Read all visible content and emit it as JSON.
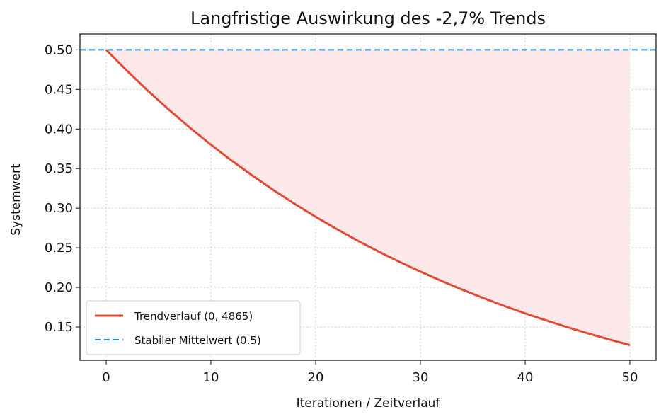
{
  "chart_data": {
    "type": "line",
    "title": "Langfristige Auswirkung des -2,7% Trends",
    "xlabel": "Iterationen / Zeitverlauf",
    "ylabel": "Systemwert",
    "xlim": [
      -2.5,
      52.5
    ],
    "ylim": [
      0.108,
      0.52
    ],
    "x_ticks": [
      0,
      10,
      20,
      30,
      40,
      50
    ],
    "y_ticks": [
      0.15,
      0.2,
      0.25,
      0.3,
      0.35,
      0.4,
      0.45,
      0.5
    ],
    "x_tick_labels": [
      "0",
      "10",
      "20",
      "30",
      "40",
      "50"
    ],
    "y_tick_labels": [
      "0.15",
      "0.20",
      "0.25",
      "0.30",
      "0.35",
      "0.40",
      "0.45",
      "0.50"
    ],
    "grid": true,
    "legend_position": "lower-left",
    "series": [
      {
        "name": "Trendverlauf (0, 4865)",
        "style": "solid",
        "color": "#e24a33",
        "x": [
          0,
          2,
          4,
          6,
          8,
          10,
          12,
          14,
          16,
          18,
          20,
          22,
          24,
          26,
          28,
          30,
          32,
          34,
          36,
          38,
          40,
          42,
          44,
          46,
          48,
          50
        ],
        "values": [
          0.5,
          0.4734,
          0.4481,
          0.4242,
          0.4016,
          0.3802,
          0.3599,
          0.3408,
          0.3226,
          0.3054,
          0.2891,
          0.2737,
          0.2591,
          0.2453,
          0.2323,
          0.2199,
          0.2082,
          0.1971,
          0.1866,
          0.1766,
          0.1672,
          0.1583,
          0.1499,
          0.1419,
          0.1343,
          0.1272
        ]
      },
      {
        "name": "Stabiler Mittelwert (0.5)",
        "style": "dashed",
        "color": "#1f8ad6",
        "y": 0.5
      }
    ],
    "fill_between": {
      "color": "#fde8ea",
      "from_series": 0,
      "to_series": 1
    }
  }
}
